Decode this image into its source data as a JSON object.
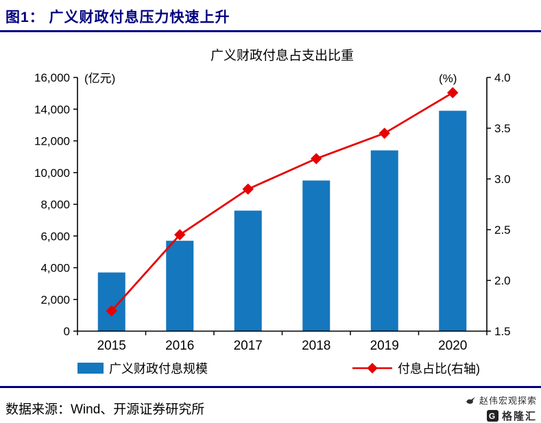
{
  "header": {
    "title": "图1：  广义财政付息压力快速上升"
  },
  "chart_data": {
    "type": "bar",
    "subtype": "combo-bar-line",
    "title": "广义财政付息占支出比重",
    "categories": [
      "2015",
      "2016",
      "2017",
      "2018",
      "2019",
      "2020"
    ],
    "series": [
      {
        "name": "广义财政付息规模",
        "type": "bar",
        "axis": "left",
        "values": [
          3700,
          5700,
          7600,
          9500,
          11400,
          13900
        ],
        "color": "#1577BE"
      },
      {
        "name": "付息占比(右轴)",
        "type": "line",
        "axis": "right",
        "values": [
          1.7,
          2.45,
          2.9,
          3.2,
          3.45,
          3.85
        ],
        "color": "#E60000"
      }
    ],
    "left_axis": {
      "label": "(亿元)",
      "min": 0,
      "max": 16000,
      "step": 2000
    },
    "right_axis": {
      "label": "(%)",
      "min": 1.5,
      "max": 4.0,
      "step": 0.5
    },
    "legend_position": "bottom",
    "grid": false
  },
  "footer": {
    "source": "数据来源：Wind、开源证券研究所"
  },
  "watermark": {
    "line1": "赵伟宏观探索",
    "line2": "格隆汇",
    "logo_letter": "G"
  },
  "colors": {
    "accent": "#000080",
    "bar": "#1577BE",
    "line": "#E60000",
    "axis": "#000000"
  }
}
